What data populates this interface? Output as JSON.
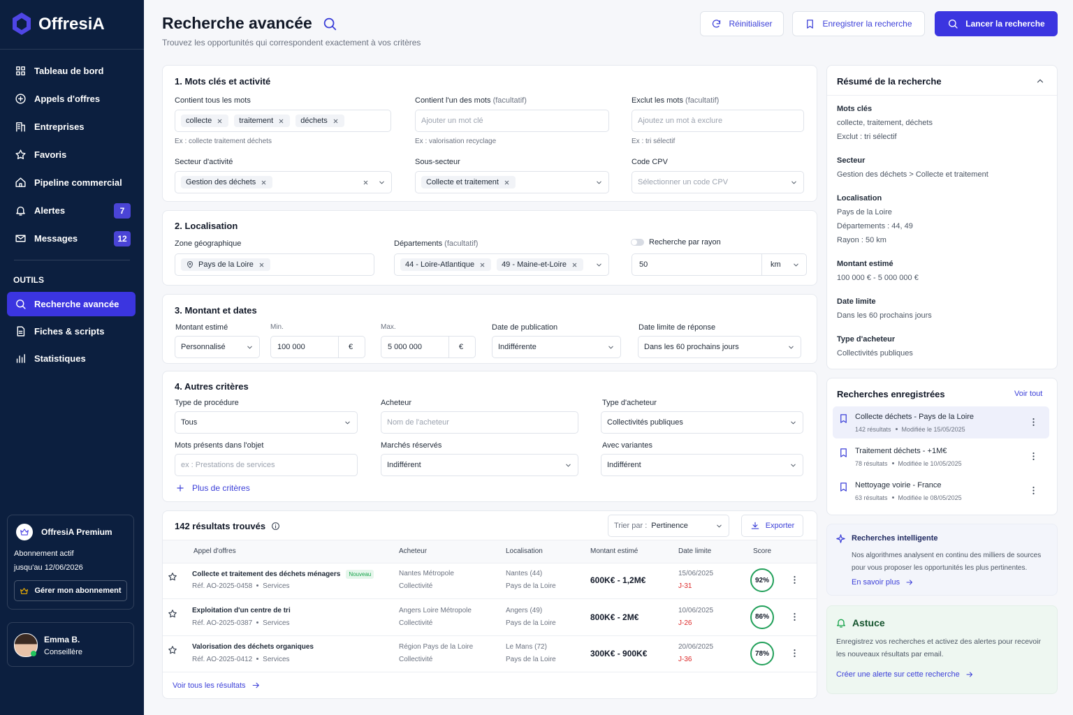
{
  "sidebar": {
    "brand": "OffresiA",
    "nav": [
      {
        "label": "Tableau de bord"
      },
      {
        "label": "Appels d'offres"
      },
      {
        "label": "Entreprises"
      },
      {
        "label": "Favoris"
      },
      {
        "label": "Pipeline commercial"
      },
      {
        "label": "Alertes",
        "badge": "7"
      },
      {
        "label": "Messages",
        "badge": "12"
      }
    ],
    "tools_title": "OUTILS",
    "tools": [
      "Recherche avancée",
      "Fiches & scripts",
      "Statistiques"
    ],
    "premium": {
      "title": "OffresiA Premium",
      "status": "Abonnement actif",
      "until": "jusqu'au 12/06/2026",
      "button": "Gérer mon abonnement"
    },
    "user": {
      "name": "Emma B.",
      "role": "Conseillère"
    }
  },
  "header": {
    "title": "Recherche avancée",
    "subtitle": "Trouvez les opportunités qui correspondent exactement à vos critères",
    "buttons": [
      "Réinitialiser",
      "Enregistrer la recherche",
      "Lancer la recherche"
    ]
  },
  "keywords": {
    "title": "1. Mots clés et activité",
    "all_label": "Contient tous les mots",
    "all_tags": [
      "collecte",
      "traitement",
      "déchets"
    ],
    "all_hint": "Ex : collecte traitement déchets",
    "any_label": "Contient l'un des mots",
    "any_note": "(facultatif)",
    "any_placeholder": "Ajouter un mot clé",
    "any_hint": "Ex : valorisation recyclage",
    "exclude_label": "Exclut les mots",
    "exclude_note": "(facultatif)",
    "exclude_placeholder": "Ajoutez un mot à exclure",
    "exclude_hint": "Ex : tri sélectif",
    "sector_label": "Secteur d'activité",
    "sector_tag": "Gestion des déchets",
    "subsector_label": "Sous-secteur",
    "subsector_tag": "Collecte et traitement",
    "cpv_label": "Code CPV",
    "cpv_placeholder": "Sélectionner un code CPV"
  },
  "location": {
    "title": "2. Localisation",
    "zone_label": "Zone géographique",
    "zone_tag": "Pays de la Loire",
    "dept_label": "Départements",
    "dept_note": "(facultatif)",
    "dept_tags": [
      "44 - Loire-Atlantique",
      "49 - Maine-et-Loire"
    ],
    "radius_label": "Recherche par rayon",
    "radius_value": "50",
    "radius_unit": "km"
  },
  "amount": {
    "title": "3. Montant et dates",
    "amount_label": "Montant estimé",
    "amount_select": "Personnalisé",
    "min_label": "Min.",
    "min_value": "100 000",
    "min_currency": "€",
    "max_label": "Max.",
    "max_value": "5 000 000",
    "max_currency": "€",
    "pub_label": "Date de publication",
    "pub_value": "Indifférente",
    "deadline_label": "Date limite de réponse",
    "deadline_value": "Dans les 60 prochains jours"
  },
  "other": {
    "title": "4. Autres critères",
    "procedure_label": "Type de procédure",
    "procedure_value": "Tous",
    "buyer_label": "Acheteur",
    "buyer_placeholder": "Nom de l'acheteur",
    "buyer_type_label": "Type d'acheteur",
    "buyer_type_value": "Collectivités publiques",
    "object_label": "Mots présents dans l'objet",
    "object_placeholder": "ex : Prestations de services",
    "reserved_label": "Marchés réservés",
    "reserved_value": "Indifférent",
    "variants_label": "Avec variantes",
    "variants_value": "Indifférent",
    "more": "Plus de critères"
  },
  "results": {
    "count": "142 résultats trouvés",
    "sort_label": "Trier par :",
    "sort_value": "Pertinence",
    "export": "Exporter",
    "columns": [
      "Appel d'offres",
      "Acheteur",
      "Localisation",
      "Montant estimé",
      "Date limite",
      "Score"
    ],
    "rows": [
      {
        "title": "Collecte et traitement des déchets ménagers",
        "badge": "Nouveau",
        "ref": "Réf. AO-2025-0458",
        "type": "Services",
        "buyer": "Nantes Métropole",
        "buyer_type": "Collectivité",
        "city": "Nantes (44)",
        "region": "Pays de la Loire",
        "amount": "600K€ - 1,2M€",
        "date": "15/06/2025",
        "days": "J-31",
        "score": "92%"
      },
      {
        "title": "Exploitation d'un centre de tri",
        "ref": "Réf. AO-2025-0387",
        "type": "Services",
        "buyer": "Angers Loire Métropole",
        "buyer_type": "Collectivité",
        "city": "Angers (49)",
        "region": "Pays de la Loire",
        "amount": "800K€ - 2M€",
        "date": "10/06/2025",
        "days": "J-26",
        "score": "86%"
      },
      {
        "title": "Valorisation des déchets organiques",
        "ref": "Réf. AO-2025-0412",
        "type": "Services",
        "buyer": "Région Pays de la Loire",
        "buyer_type": "Collectivité",
        "city": "Le Mans (72)",
        "region": "Pays de la Loire",
        "amount": "300K€ - 900K€",
        "date": "20/06/2025",
        "days": "J-36",
        "score": "78%"
      }
    ],
    "footer": "Voir tous les résultats"
  },
  "summary": {
    "title": "Résumé de la recherche",
    "items": [
      {
        "label": "Mots clés",
        "lines": [
          "collecte, traitement, déchets",
          "Exclut : tri sélectif"
        ]
      },
      {
        "label": "Secteur",
        "lines": [
          "Gestion des déchets > Collecte et traitement"
        ]
      },
      {
        "label": "Localisation",
        "lines": [
          "Pays de la Loire",
          "Départements : 44, 49",
          "Rayon : 50 km"
        ]
      },
      {
        "label": "Montant estimé",
        "lines": [
          "100 000 € - 5 000 000 €"
        ]
      },
      {
        "label": "Date limite",
        "lines": [
          "Dans les 60 prochains jours"
        ]
      },
      {
        "label": "Type d'acheteur",
        "lines": [
          "Collectivités publiques"
        ]
      }
    ]
  },
  "saved": {
    "title": "Recherches enregistrées",
    "link": "Voir tout",
    "items": [
      {
        "name": "Collecte déchets - Pays de la Loire",
        "results": "142 résultats",
        "modified": "Modifiée le 15/05/2025"
      },
      {
        "name": "Traitement déchets - +1M€",
        "results": "78 résultats",
        "modified": "Modifiée le 10/05/2025"
      },
      {
        "name": "Nettoyage voirie - France",
        "results": "63 résultats",
        "modified": "Modifiée le 08/05/2025"
      }
    ]
  },
  "smart": {
    "title": "Recherches intelligente",
    "text": "Nos algorithmes analysent en continu des milliers de sources pour vous proposer les opportunités les plus pertinentes.",
    "link": "En savoir plus"
  },
  "tip": {
    "title": "Astuce",
    "text": "Enregistrez vos recherches et activez des alertes pour recevoir les nouveaux résultats par email.",
    "link": "Créer une alerte sur cette recherche"
  }
}
